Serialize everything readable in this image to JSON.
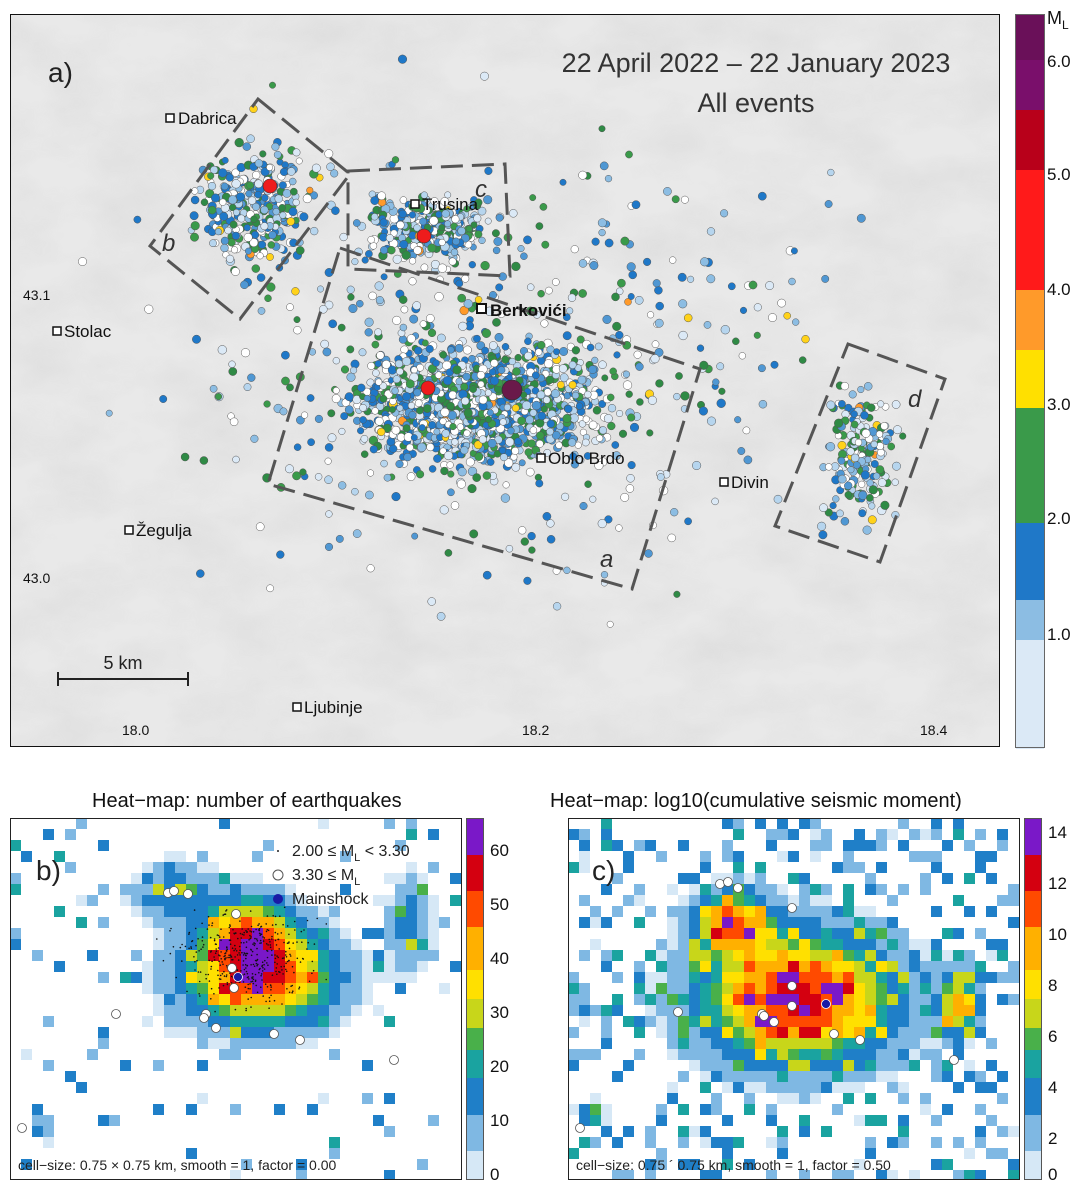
{
  "main_map": {
    "panel_label": "a)",
    "title_line1": "22 April 2022 – 22 January 2023",
    "title_line2": "All events",
    "lat_labels": [
      "43.1",
      "43.0"
    ],
    "lon_labels": [
      "18.0",
      "18.2",
      "18.4"
    ],
    "scale_bar": "5 km",
    "places": [
      "Dabrica",
      "Trusina",
      "Berkovići",
      "Stolac",
      "Oblo Brdo",
      "Divin",
      "Žegulja",
      "Ljubinje"
    ],
    "zones": [
      "a",
      "b",
      "c",
      "d"
    ],
    "colorbar": {
      "title": "M",
      "title_sub": "L",
      "ticks": [
        "6.0",
        "5.0",
        "4.0",
        "3.0",
        "2.0",
        "1.0"
      ],
      "colors": [
        "#7a0f6b",
        "#c0001a",
        "#ff1a1a",
        "#ff9a2a",
        "#ffe000",
        "#3a9a4a",
        "#1f78c8",
        "#b6d5ee",
        "#f2f2f2"
      ]
    }
  },
  "heatmap_count": {
    "title": "Heat−map: number of earthquakes",
    "panel_label": "b)",
    "legend": [
      "2.00 ≤ M",
      "L",
      " < 3.30",
      "3.30 ≤ M",
      "L",
      "Mainshock"
    ],
    "footer": "cell−size: 0.75 × 0.75 km,   smooth = 1, factor = 0.00",
    "colorbar_ticks": [
      "60",
      "50",
      "40",
      "30",
      "20",
      "10",
      "0"
    ]
  },
  "heatmap_moment": {
    "title": "Heat−map: log10(cumulative seismic moment)",
    "panel_label": "c)",
    "footer": "cell−size: 0.75 ´ 0.75 km,   smooth = 1, factor = 0.50",
    "colorbar_ticks": [
      "14",
      "12",
      "10",
      "8",
      "6",
      "4",
      "2",
      "0"
    ]
  }
}
